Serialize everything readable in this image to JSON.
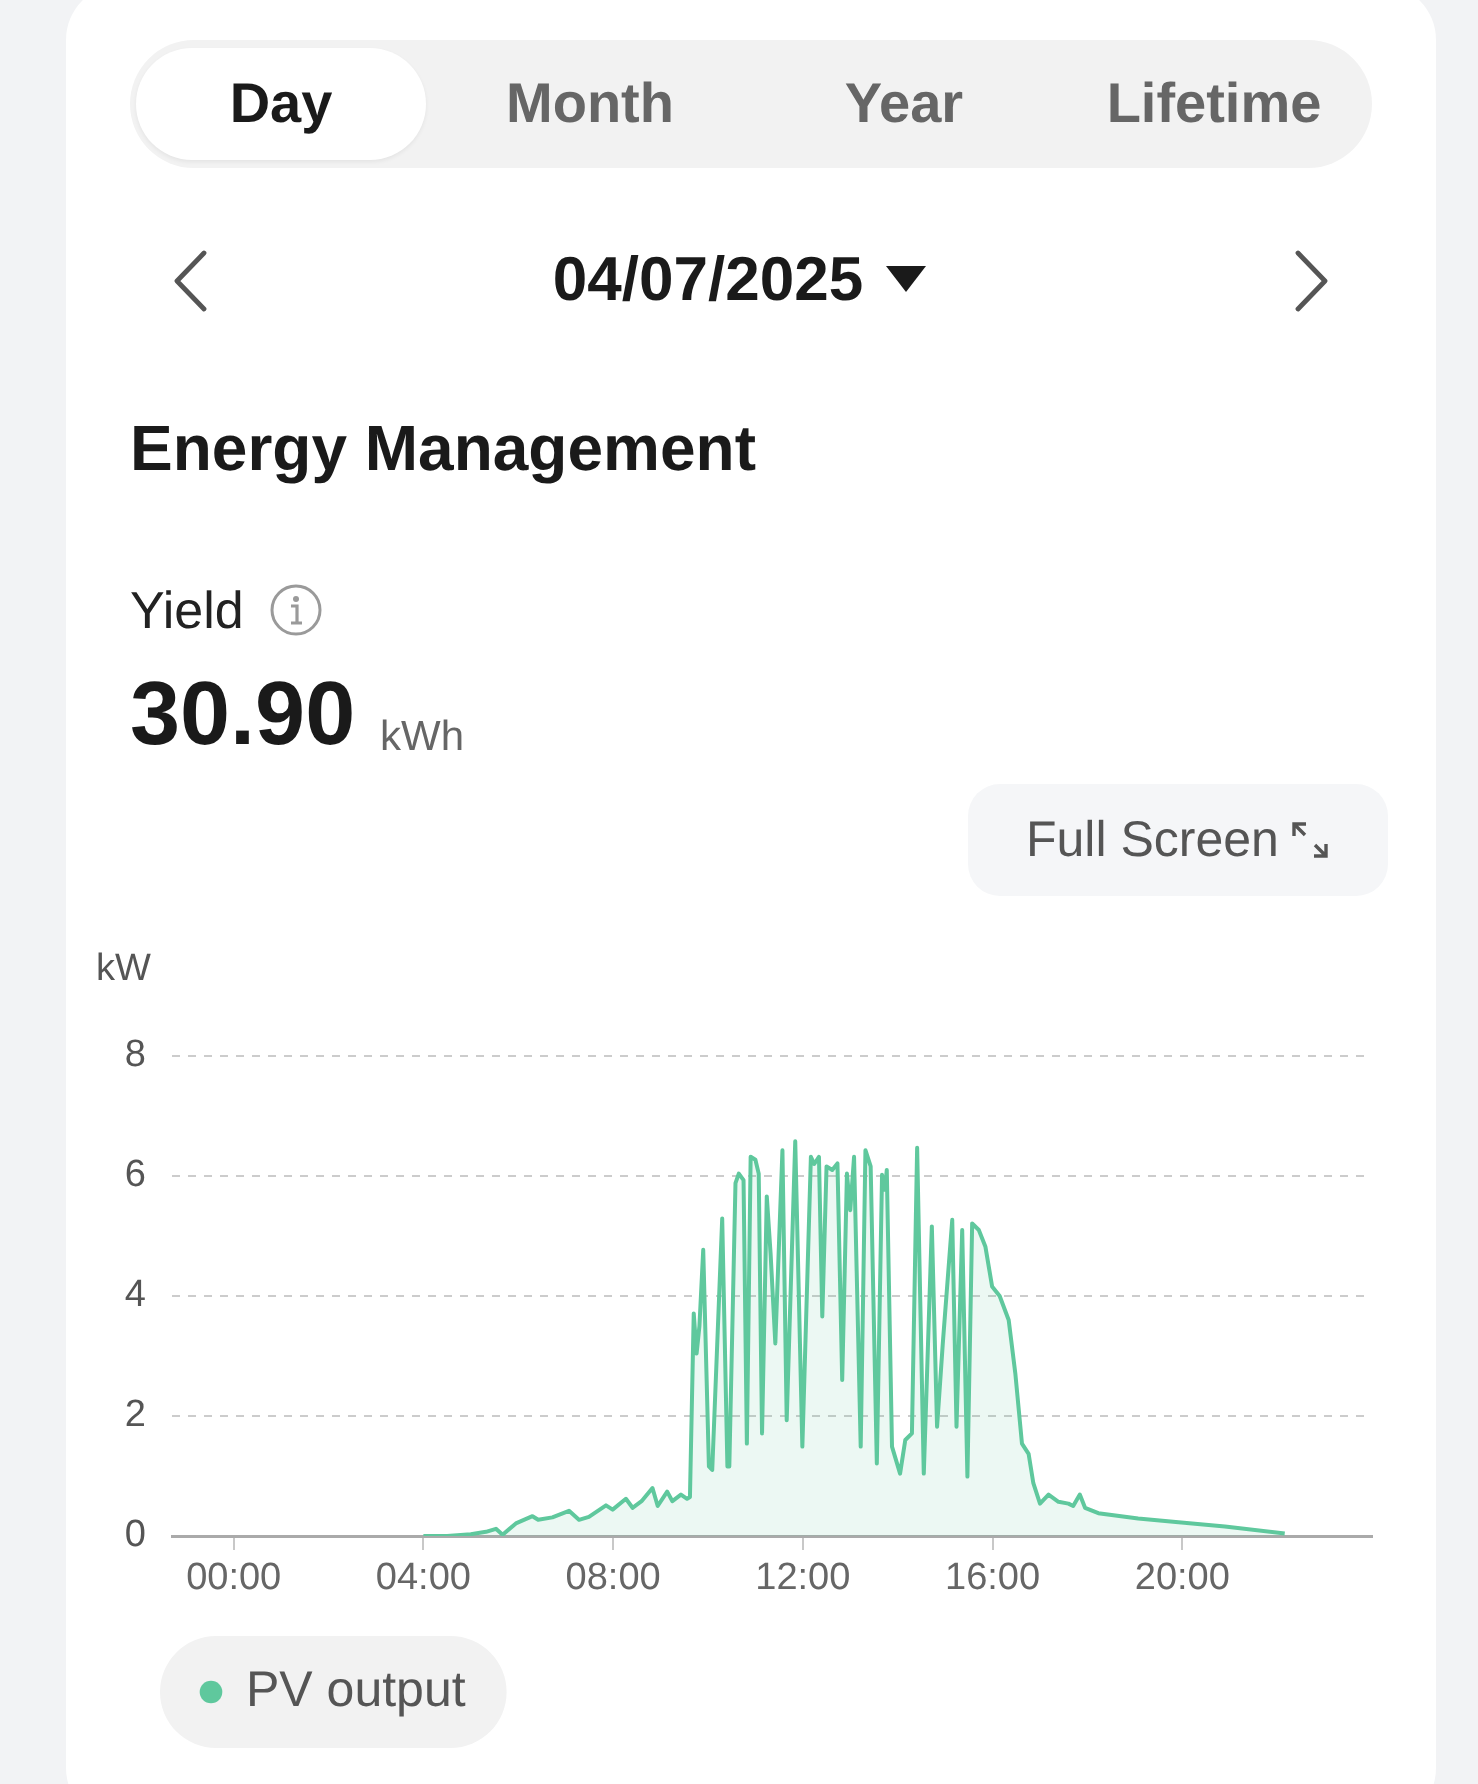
{
  "chart_data": {
    "type": "area",
    "title": "Energy Management",
    "subtitle": "04/07/2025",
    "ylabel": "kW",
    "annotations": [
      "Day",
      "Month",
      "Year",
      "Lifetime",
      "Yield",
      "30.90",
      "kWh",
      "Full Screen"
    ],
    "xlim": [
      -1.3,
      24
    ],
    "xticks": [
      {
        "value": 0,
        "label": "00:00"
      },
      {
        "value": 4,
        "label": "04:00"
      },
      {
        "value": 8,
        "label": "08:00"
      },
      {
        "value": 12,
        "label": "12:00"
      },
      {
        "value": 16,
        "label": "16:00"
      },
      {
        "value": 20,
        "label": "20:00"
      }
    ],
    "ylim": [
      0,
      8
    ],
    "yticks": [
      0,
      2,
      4,
      6,
      8
    ],
    "grid": "y",
    "legend": "bottom left",
    "x": [
      4.0,
      4.5,
      5.0,
      5.32,
      5.53,
      5.67,
      5.95,
      6.3,
      6.42,
      6.72,
      7.07,
      7.28,
      7.49,
      7.85,
      7.99,
      8.27,
      8.41,
      8.6,
      8.83,
      8.94,
      9.14,
      9.25,
      9.43,
      9.56,
      9.62,
      9.7,
      9.76,
      9.82,
      9.9,
      10.02,
      10.09,
      10.3,
      10.41,
      10.45,
      10.58,
      10.65,
      10.75,
      10.82,
      10.9,
      11.0,
      11.07,
      11.14,
      11.24,
      11.32,
      11.42,
      11.57,
      11.66,
      11.84,
      11.99,
      12.17,
      12.24,
      12.34,
      12.41,
      12.5,
      12.62,
      12.73,
      12.83,
      12.93,
      13.0,
      13.08,
      13.22,
      13.32,
      13.43,
      13.56,
      13.67,
      13.73,
      13.77,
      13.88,
      14.05,
      14.16,
      14.3,
      14.41,
      14.55,
      14.72,
      14.83,
      14.95,
      15.15,
      15.24,
      15.36,
      15.47,
      15.57,
      15.71,
      15.85,
      15.99,
      16.15,
      16.34,
      16.48,
      16.62,
      16.76,
      16.86,
      17.0,
      17.18,
      17.39,
      17.6,
      17.7,
      17.84,
      17.95,
      18.23,
      19.07,
      19.92,
      20.9,
      22.16
    ],
    "series": [
      {
        "name": "PV output",
        "color": "#5fc89d",
        "values": [
          0,
          0,
          0.03,
          0.07,
          0.12,
          0.02,
          0.21,
          0.33,
          0.27,
          0.31,
          0.42,
          0.27,
          0.32,
          0.51,
          0.44,
          0.62,
          0.47,
          0.58,
          0.8,
          0.5,
          0.74,
          0.58,
          0.69,
          0.62,
          0.65,
          3.71,
          3.04,
          3.5,
          4.77,
          1.16,
          1.1,
          5.29,
          1.16,
          1.16,
          5.88,
          6.04,
          5.93,
          1.54,
          6.32,
          6.27,
          6.04,
          1.71,
          5.66,
          4.71,
          3.21,
          6.43,
          1.93,
          6.58,
          1.49,
          6.32,
          6.2,
          6.32,
          3.66,
          6.16,
          6.1,
          6.21,
          2.6,
          6.04,
          5.43,
          6.32,
          1.49,
          6.43,
          6.16,
          1.21,
          6.02,
          5.77,
          6.1,
          1.49,
          1.04,
          1.6,
          1.71,
          6.47,
          1.04,
          5.16,
          1.82,
          3.2,
          5.27,
          1.82,
          5.1,
          0.99,
          5.21,
          5.1,
          4.82,
          4.16,
          4.0,
          3.6,
          2.71,
          1.54,
          1.37,
          0.88,
          0.54,
          0.69,
          0.57,
          0.54,
          0.5,
          0.69,
          0.47,
          0.38,
          0.29,
          0.23,
          0.16,
          0.04
        ]
      }
    ]
  }
}
